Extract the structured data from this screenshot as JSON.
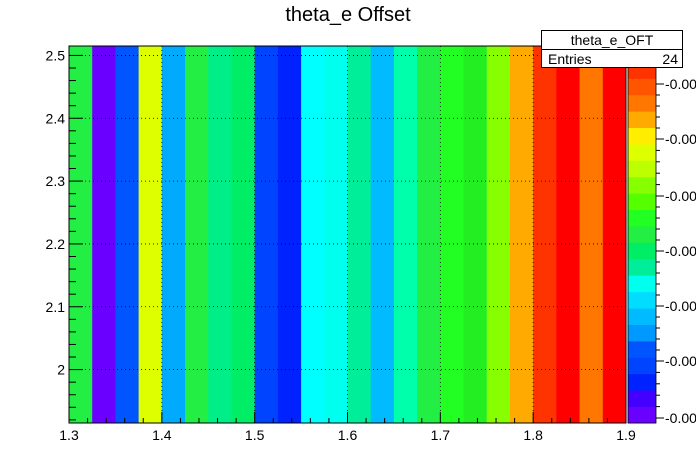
{
  "chart_data": {
    "type": "heatmap",
    "title": "theta_e Offset",
    "xlabel": "",
    "ylabel": "",
    "xlim": [
      1.3,
      1.9
    ],
    "ylim": [
      1.915,
      2.515
    ],
    "x_ticks": [
      "1.3",
      "1.4",
      "1.5",
      "1.6",
      "1.7",
      "1.8",
      "1.9"
    ],
    "y_ticks": [
      "2",
      "2.1",
      "2.2",
      "2.3",
      "2.4",
      "2.5"
    ],
    "x_bin_edges": [
      1.3,
      1.325,
      1.35,
      1.375,
      1.4,
      1.425,
      1.45,
      1.475,
      1.5,
      1.525,
      1.55,
      1.575,
      1.6,
      1.625,
      1.65,
      1.675,
      1.7,
      1.725,
      1.75,
      1.775,
      1.8,
      1.825,
      1.85,
      1.875,
      1.9
    ],
    "colors": [
      "#22ee44",
      "#6a00ff",
      "#0055ff",
      "#ddff00",
      "#00aaff",
      "#22ee44",
      "#00ee88",
      "#00ee66",
      "#0044ff",
      "#0022ff",
      "#00ffff",
      "#00ffee",
      "#00ee99",
      "#00bbff",
      "#00ffaa",
      "#22ee44",
      "#22ff22",
      "#22ee22",
      "#88ff00",
      "#ffaa00",
      "#ff3300",
      "#ff0000",
      "#ff7700",
      "#ff0000"
    ],
    "grid": true,
    "palette_tick_label": "-0.00",
    "palette_colors": [
      "#6a00ff",
      "#4400ff",
      "#0022ff",
      "#0044ff",
      "#0055ff",
      "#0099ff",
      "#00bbff",
      "#00ddff",
      "#00ffee",
      "#00ee99",
      "#00ee66",
      "#22ee44",
      "#22ff22",
      "#55ff00",
      "#88ff00",
      "#bbff00",
      "#ddff00",
      "#ffee00",
      "#ffaa00",
      "#ff7700",
      "#ff5500",
      "#ff3300"
    ]
  },
  "stats": {
    "name": "theta_e_OFT",
    "entries_label": "Entries",
    "entries_value": "24"
  }
}
